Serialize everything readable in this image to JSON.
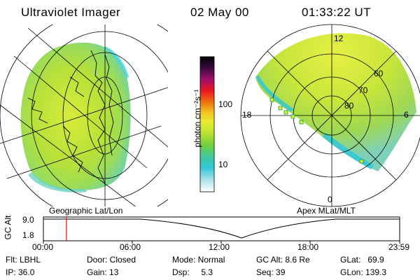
{
  "header": {
    "instrument": "Ultraviolet Imager",
    "date": "02 May 00",
    "time": "01:33:22 UT"
  },
  "colorbar": {
    "unit_label": "photon cm⁻²s⁻¹",
    "ticks": [
      "100",
      "10"
    ]
  },
  "left_panel": {
    "caption": "Geographic Lat/Lon"
  },
  "right_panel": {
    "caption": "Apex MLat/MLT",
    "mlt_labels": [
      "12",
      "18",
      "6",
      "0"
    ],
    "lat_labels": [
      "60",
      "70",
      "80"
    ]
  },
  "timeline": {
    "ylabel": "GC Alt",
    "yticks": [
      "9.0",
      "1.8"
    ],
    "xticks": [
      "00:00",
      "06:00",
      "12:00",
      "18:00",
      "23:59"
    ],
    "cursor_time": "01:33"
  },
  "status": {
    "flt": "Flt: LBHL",
    "ip": "IP: 36.0",
    "door": "Door: Closed",
    "gain": "Gain: 13",
    "mode": "Mode: Normal",
    "dsp": "Dsp:     5.3",
    "gcalt": "GC Alt: 8.6 Re",
    "seq": "Seq: 39",
    "glat": "GLat:   69.9",
    "glon": "GLon: 139.3"
  }
}
